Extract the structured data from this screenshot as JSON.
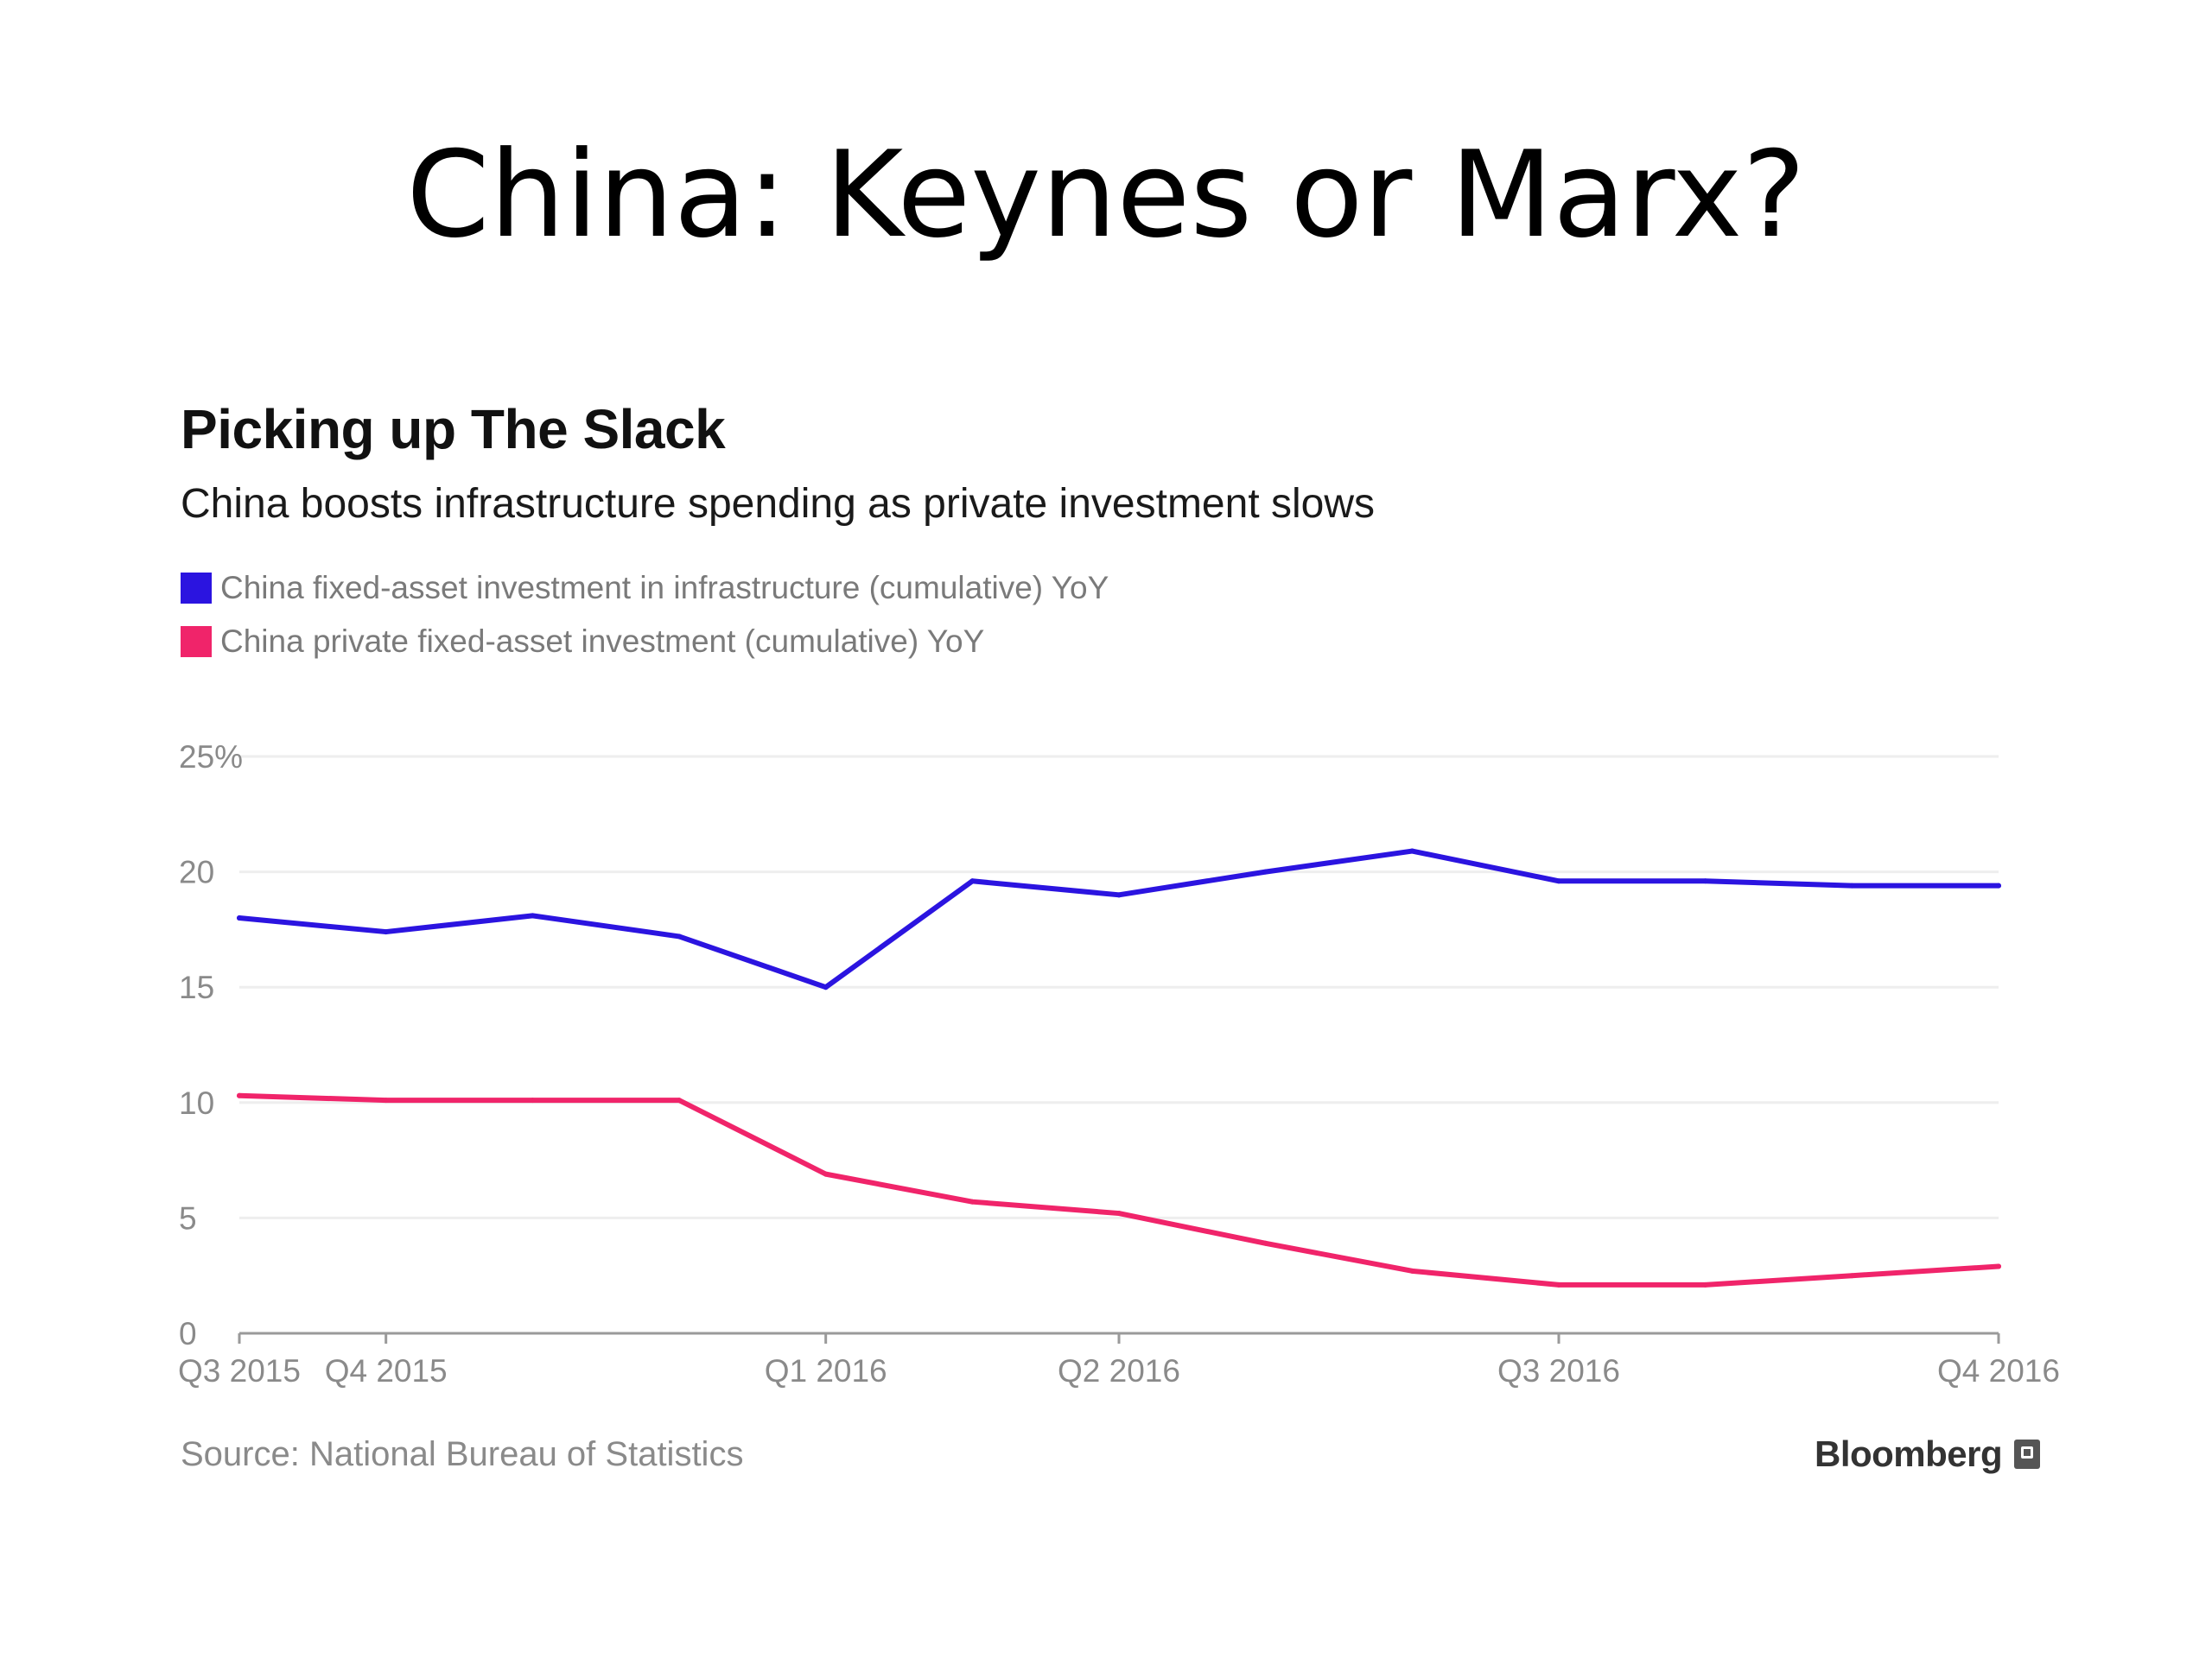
{
  "slide": {
    "title": "China: Keynes or Marx?"
  },
  "chart_data": {
    "type": "line",
    "title": "Picking up The Slack",
    "subtitle": "China boosts infrastructure spending as private investment slows",
    "x_tick_labels": [
      "Q3 2015",
      "Q4 2015",
      "Q1 2016",
      "Q2 2016",
      "Q3 2016",
      "Q4 2016"
    ],
    "x_tick_positions": [
      0,
      1,
      4,
      6,
      9,
      12
    ],
    "y_tick_labels": [
      "0",
      "5",
      "10",
      "15",
      "20",
      "25%"
    ],
    "y_tick_values": [
      0,
      5,
      10,
      15,
      20,
      25
    ],
    "ylim": [
      0,
      25
    ],
    "grid": true,
    "legend_position": "top-left",
    "x": [
      0,
      1,
      2,
      3,
      4,
      5,
      6,
      7,
      8,
      9,
      10,
      11,
      12
    ],
    "series": [
      {
        "name": "China fixed-asset investment in infrastructure (cumulative) YoY",
        "color": "#2b14e0",
        "values": [
          18.0,
          17.4,
          18.1,
          17.2,
          15.0,
          19.6,
          19.0,
          20.0,
          20.9,
          19.6,
          19.6,
          19.4,
          19.4
        ]
      },
      {
        "name": "China private fixed-asset investment (cumulative) YoY",
        "color": "#f0246a",
        "values": [
          10.3,
          10.1,
          10.1,
          10.1,
          6.9,
          5.7,
          5.2,
          3.9,
          2.7,
          2.1,
          2.1,
          2.5,
          2.9
        ]
      }
    ]
  },
  "footer": {
    "source": "Source: National Bureau of Statistics",
    "brand": "Bloomberg",
    "brand_icon": "bloomberg-logo-icon"
  }
}
